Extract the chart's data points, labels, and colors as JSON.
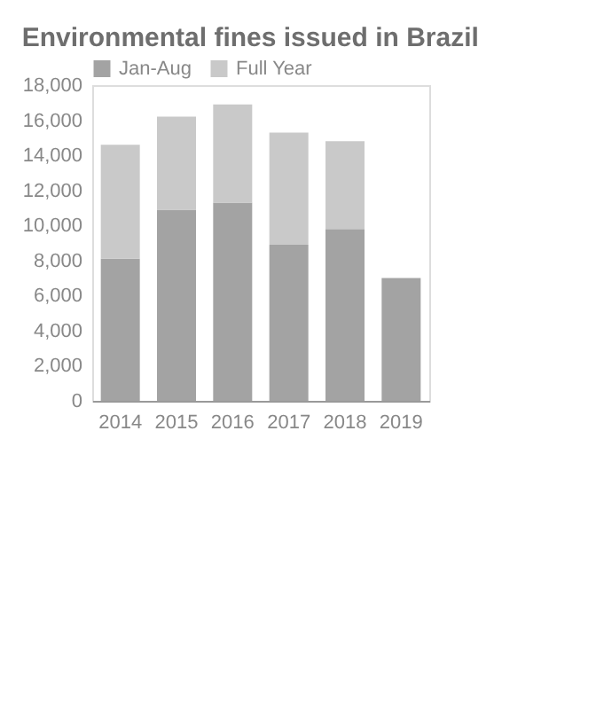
{
  "chart_data": {
    "type": "bar",
    "title": "Environmental fines issued in Brazil",
    "categories": [
      "2014",
      "2015",
      "2016",
      "2017",
      "2018",
      "2019"
    ],
    "stacked": true,
    "series": [
      {
        "name": "Jan-Aug",
        "color": "#a3a3a3",
        "values": [
          8100,
          10900,
          11300,
          8900,
          9800,
          7000
        ]
      },
      {
        "name": "Full Year",
        "color": "#c9c9c9",
        "values": [
          6500,
          5300,
          5600,
          6400,
          5000,
          null
        ]
      }
    ],
    "ylim": [
      0,
      18000
    ],
    "yticks": [
      0,
      {
        "value": 2000,
        "label": "2,000"
      },
      {
        "value": 4000,
        "label": "4,000"
      },
      {
        "value": 6000,
        "label": "6,000"
      },
      {
        "value": 8000,
        "label": "8,000"
      },
      {
        "value": 10000,
        "label": "10,000"
      },
      {
        "value": 12000,
        "label": "12,000"
      },
      {
        "value": 14000,
        "label": "14,000"
      },
      {
        "value": 16000,
        "label": "16,000"
      },
      {
        "value": 18000,
        "label": "18,000"
      }
    ],
    "grid": false,
    "legend": "top left"
  }
}
